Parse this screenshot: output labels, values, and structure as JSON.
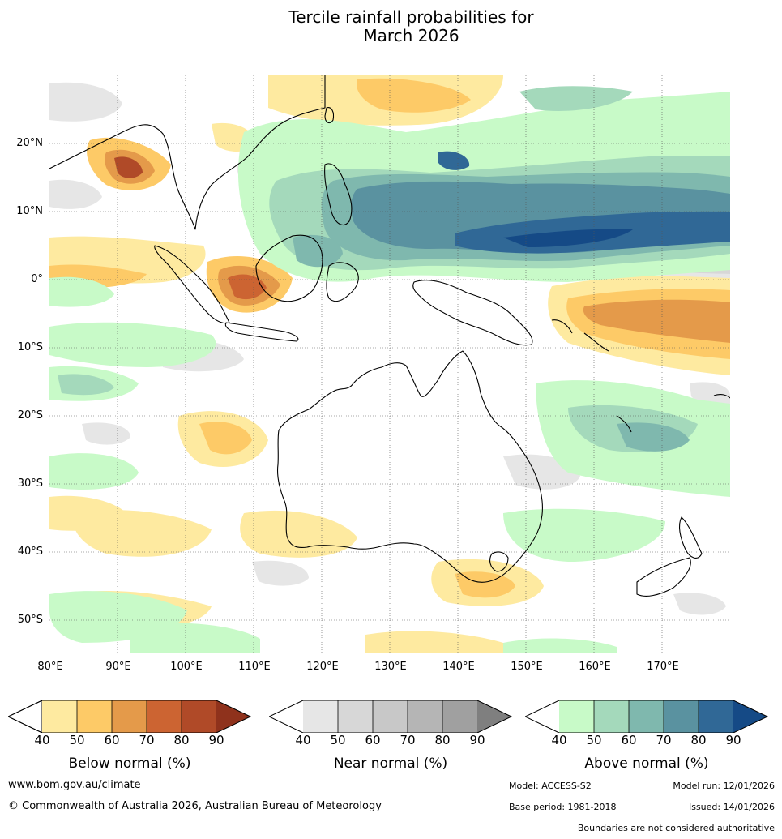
{
  "title": {
    "line1": "Tercile rainfall probabilities for",
    "line2": "March 2026"
  },
  "map": {
    "lat_labels": [
      "20°N",
      "10°N",
      "0°",
      "10°S",
      "20°S",
      "30°S",
      "40°S",
      "50°S"
    ],
    "lon_labels": [
      "80°E",
      "90°E",
      "100°E",
      "110°E",
      "120°E",
      "130°E",
      "140°E",
      "150°E",
      "160°E",
      "170°E"
    ],
    "extent": {
      "lon_min": 80,
      "lon_max": 180,
      "lat_min": -55,
      "lat_max": 30
    }
  },
  "legends": {
    "below": {
      "caption": "Below normal (%)",
      "ticks": [
        "40",
        "50",
        "60",
        "70",
        "80",
        "90"
      ],
      "colors": [
        "#ffffff",
        "#feeaa0",
        "#fdca67",
        "#e49a4a",
        "#cc6432",
        "#b04a28",
        "#8f321c"
      ]
    },
    "near": {
      "caption": "Near normal (%)",
      "ticks": [
        "40",
        "50",
        "60",
        "70",
        "80",
        "90"
      ],
      "colors": [
        "#ffffff",
        "#e6e6e6",
        "#d7d7d7",
        "#c8c8c8",
        "#b5b5b5",
        "#a0a0a0",
        "#7f7f7f"
      ]
    },
    "above": {
      "caption": "Above normal (%)",
      "ticks": [
        "40",
        "50",
        "60",
        "70",
        "80",
        "90"
      ],
      "colors": [
        "#ffffff",
        "#c8fac8",
        "#a4d9bb",
        "#7fb8ae",
        "#5a92a0",
        "#306896",
        "#154a86"
      ]
    }
  },
  "footer": {
    "website": "www.bom.gov.au/climate",
    "copyright": "© Commonwealth of Australia 2026, Australian Bureau of Meteorology",
    "model": "Model: ACCESS-S2",
    "model_run": "Model run: 12/01/2026",
    "base_period": "Base period: 1981-2018",
    "issued": "Issued: 14/01/2026",
    "disclaimer": "Boundaries are not considered authoritative"
  }
}
